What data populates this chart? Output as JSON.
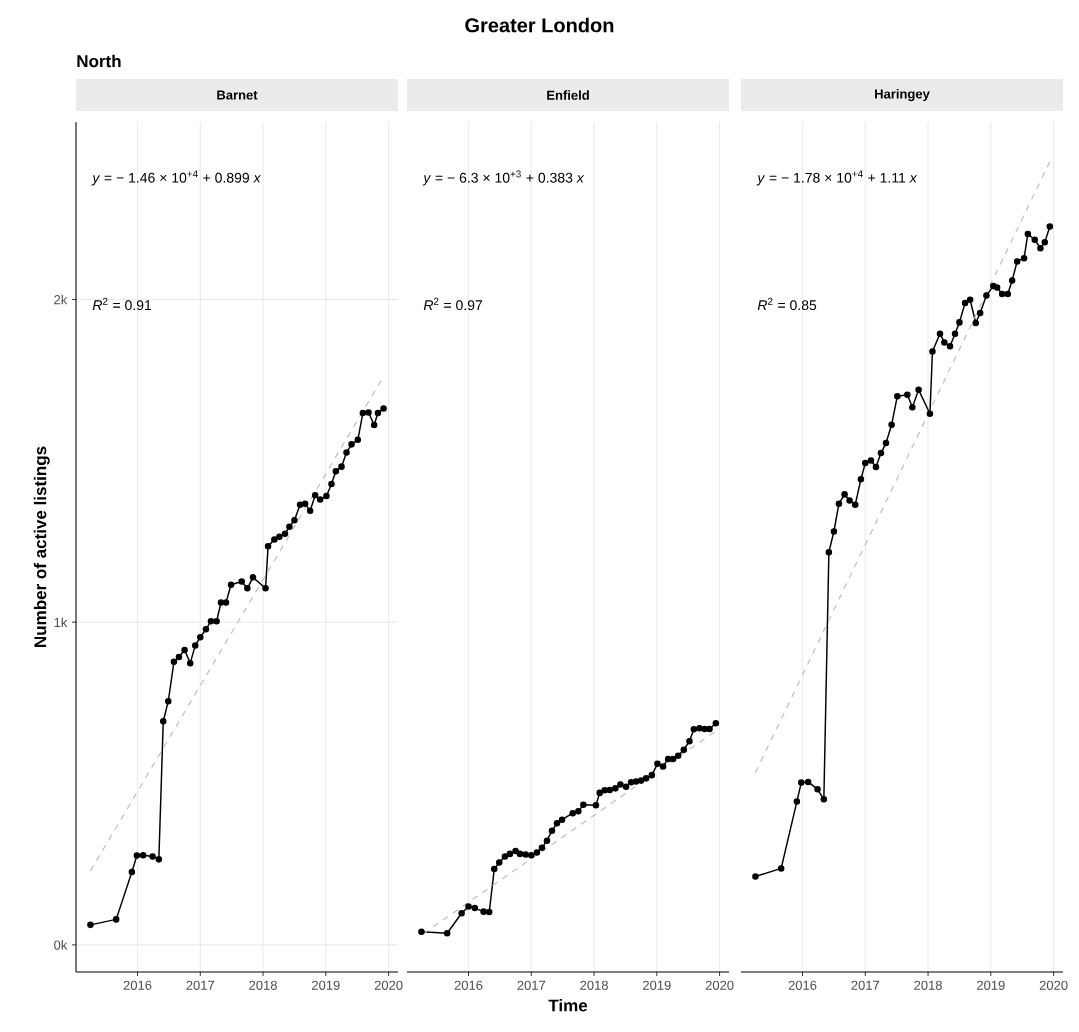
{
  "chart_data": [
    {
      "type": "line",
      "title": "Barnet",
      "ylabel": "Number of active listings",
      "annotations": [
        "Greater London",
        "North",
        "*y* = − 1.46 × 10$^{+4}$ + 0.899 *x*",
        "*R*$^{2}$ = 0.91"
      ],
      "marker": "circle",
      "grid": true,
      "xlim": [
        2015.02,
        2020.15
      ],
      "xticks": [
        2016,
        2017,
        2018,
        2019,
        2020
      ],
      "ylim": [
        -84,
        2550
      ],
      "yticks": [
        {
          "value": 0,
          "label": "0k"
        },
        {
          "value": 1000,
          "label": "1k"
        },
        {
          "value": 2000,
          "label": "2k"
        }
      ],
      "series": [
        {
          "color": "#000000",
          "x": [
            2015.25,
            2015.66,
            2015.91,
            2015.99,
            2016.09,
            2016.24,
            2016.34,
            2016.41,
            2016.49,
            2016.58,
            2016.66,
            2016.75,
            2016.84,
            2016.92,
            2017.0,
            2017.09,
            2017.17,
            2017.26,
            2017.33,
            2017.41,
            2017.49,
            2017.66,
            2017.75,
            2017.84,
            2018.04,
            2018.08,
            2018.18,
            2018.26,
            2018.35,
            2018.42,
            2018.5,
            2018.59,
            2018.67,
            2018.75,
            2018.83,
            2018.91,
            2019.01,
            2019.09,
            2019.16,
            2019.25,
            2019.33,
            2019.41,
            2019.51,
            2019.59,
            2019.68,
            2019.77,
            2019.83,
            2019.92
          ],
          "values": [
            62,
            79,
            226,
            277,
            278,
            274,
            265,
            693,
            755,
            877,
            892,
            914,
            873,
            928,
            953,
            978,
            1003,
            1003,
            1061,
            1061,
            1116,
            1126,
            1105,
            1139,
            1105,
            1235,
            1256,
            1265,
            1274,
            1296,
            1316,
            1364,
            1367,
            1345,
            1393,
            1380,
            1391,
            1428,
            1468,
            1482,
            1526,
            1551,
            1565,
            1648,
            1650,
            1611,
            1648,
            1662
          ]
        },
        {
          "type": "line",
          "color": "#bebebe",
          "line_style": "dashed",
          "marker": "none",
          "x": [
            2015.25,
            2019.92
          ],
          "values": [
            229,
            1762
          ]
        }
      ]
    },
    {
      "type": "line",
      "title": "Enfield",
      "xlabel": "Time",
      "annotations": [
        "*y* = − 6.3 × 10$^{+3}$ + 0.383 *x*",
        "*R*$^{2}$ = 0.97"
      ],
      "marker": "circle",
      "grid": true,
      "tick_labels": "x",
      "xlim": [
        2015.02,
        2020.15
      ],
      "xticks": [
        2016,
        2017,
        2018,
        2019,
        2020
      ],
      "ylim": [
        -84,
        2550
      ],
      "yticks": [
        {
          "value": 0,
          "label": null
        },
        {
          "value": 1000,
          "label": null
        },
        {
          "value": 2000,
          "label": null
        }
      ],
      "series": [
        {
          "color": "#000000",
          "x": [
            2015.25,
            2015.66,
            2015.89,
            2016.0,
            2016.1,
            2016.24,
            2016.33,
            2016.41,
            2016.49,
            2016.58,
            2016.66,
            2016.75,
            2016.82,
            2016.91,
            2017.0,
            2017.09,
            2017.17,
            2017.25,
            2017.33,
            2017.41,
            2017.49,
            2017.66,
            2017.75,
            2017.83,
            2018.03,
            2018.09,
            2018.17,
            2018.25,
            2018.34,
            2018.42,
            2018.51,
            2018.59,
            2018.67,
            2018.75,
            2018.83,
            2018.92,
            2019.01,
            2019.1,
            2019.18,
            2019.26,
            2019.34,
            2019.43,
            2019.52,
            2019.59,
            2019.68,
            2019.76,
            2019.84,
            2019.94
          ],
          "values": [
            41,
            36,
            98,
            119,
            114,
            103,
            102,
            235,
            255,
            274,
            282,
            291,
            282,
            280,
            278,
            286,
            301,
            323,
            354,
            377,
            388,
            408,
            414,
            434,
            433,
            471,
            479,
            480,
            485,
            497,
            490,
            504,
            506,
            509,
            516,
            526,
            561,
            553,
            576,
            576,
            586,
            605,
            631,
            668,
            671,
            669,
            669,
            687
          ]
        },
        {
          "type": "line",
          "color": "#bebebe",
          "line_style": "dashed",
          "marker": "none",
          "x": [
            2015.28,
            2019.92
          ],
          "values": [
            35,
            660
          ]
        }
      ]
    },
    {
      "type": "line",
      "title": "Haringey",
      "annotations": [
        "*y* = − 1.78 × 10$^{+4}$ + 1.11 *x*",
        "*R*$^{2}$ = 0.85"
      ],
      "marker": "circle",
      "grid": true,
      "tick_labels": "x",
      "xlim": [
        2015.02,
        2020.15
      ],
      "xticks": [
        2016,
        2017,
        2018,
        2019,
        2020
      ],
      "ylim": [
        -84,
        2550
      ],
      "yticks": [
        {
          "value": 0,
          "label": null
        },
        {
          "value": 1000,
          "label": null
        },
        {
          "value": 2000,
          "label": null
        }
      ],
      "series": [
        {
          "color": "#000000",
          "x": [
            2015.25,
            2015.66,
            2015.91,
            2015.98,
            2016.09,
            2016.24,
            2016.34,
            2016.42,
            2016.5,
            2016.58,
            2016.67,
            2016.75,
            2016.84,
            2016.93,
            2017.0,
            2017.09,
            2017.17,
            2017.25,
            2017.33,
            2017.42,
            2017.51,
            2017.67,
            2017.75,
            2017.85,
            2018.03,
            2018.07,
            2018.19,
            2018.26,
            2018.35,
            2018.43,
            2018.5,
            2018.59,
            2018.67,
            2018.76,
            2018.83,
            2018.93,
            2019.04,
            2019.1,
            2019.18,
            2019.27,
            2019.34,
            2019.42,
            2019.53,
            2019.59,
            2019.7,
            2019.79,
            2019.86,
            2019.94
          ],
          "values": [
            212,
            237,
            444,
            503,
            505,
            482,
            451,
            1217,
            1281,
            1367,
            1396,
            1377,
            1364,
            1443,
            1493,
            1501,
            1481,
            1524,
            1555,
            1612,
            1700,
            1705,
            1666,
            1720,
            1646,
            1839,
            1894,
            1867,
            1855,
            1894,
            1929,
            1989,
            1999,
            1927,
            1958,
            2012,
            2042,
            2037,
            2017,
            2017,
            2059,
            2118,
            2128,
            2203,
            2185,
            2159,
            2177,
            2226
          ]
        },
        {
          "type": "line",
          "color": "#bebebe",
          "line_style": "dashed",
          "marker": "none",
          "x": [
            2015.25,
            2019.94
          ],
          "values": [
            534,
            2427
          ]
        }
      ]
    }
  ]
}
